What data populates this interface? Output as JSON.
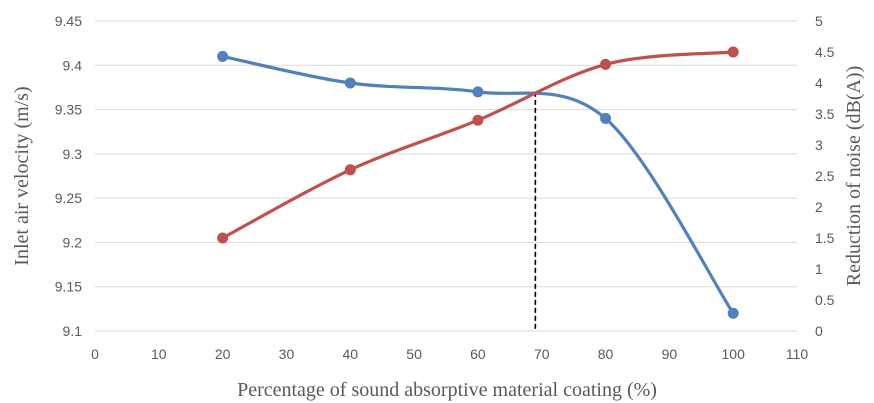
{
  "chart_data": {
    "type": "line",
    "title": "",
    "xlabel": "Percentage of sound absorptive material coating (%)",
    "ylabel_left": "Inlet air velocity (m/s)",
    "ylabel_right": "Reduction of noise (dB(A))",
    "xlim": [
      0,
      110
    ],
    "ylim_left": [
      9.1,
      9.45
    ],
    "ylim_right": [
      0,
      5
    ],
    "x_ticks": [
      "0",
      "10",
      "20",
      "30",
      "40",
      "50",
      "60",
      "70",
      "80",
      "90",
      "100",
      "110"
    ],
    "y_left_ticks": [
      "9.1",
      "9.15",
      "9.2",
      "9.25",
      "9.3",
      "9.35",
      "9.4",
      "9.45"
    ],
    "y_right_ticks": [
      "0",
      "0.5",
      "1",
      "1.5",
      "2",
      "2.5",
      "3",
      "3.5",
      "4",
      "4.5",
      "5"
    ],
    "grid": "horizontal",
    "legend": "none",
    "smooth": true,
    "series": [
      {
        "axis": "left",
        "color": "#4F81BD",
        "x": [
          20,
          40,
          60,
          80,
          100
        ],
        "y": [
          9.41,
          9.38,
          9.37,
          9.34,
          9.12
        ]
      },
      {
        "axis": "right",
        "color": "#C0504D",
        "x": [
          20,
          40,
          60,
          80,
          100
        ],
        "y": [
          1.5,
          2.6,
          3.4,
          4.3,
          4.5
        ]
      }
    ],
    "reference_line": {
      "x": 69,
      "y_left": 9.37,
      "style": "dashed",
      "color": "#000000"
    }
  }
}
